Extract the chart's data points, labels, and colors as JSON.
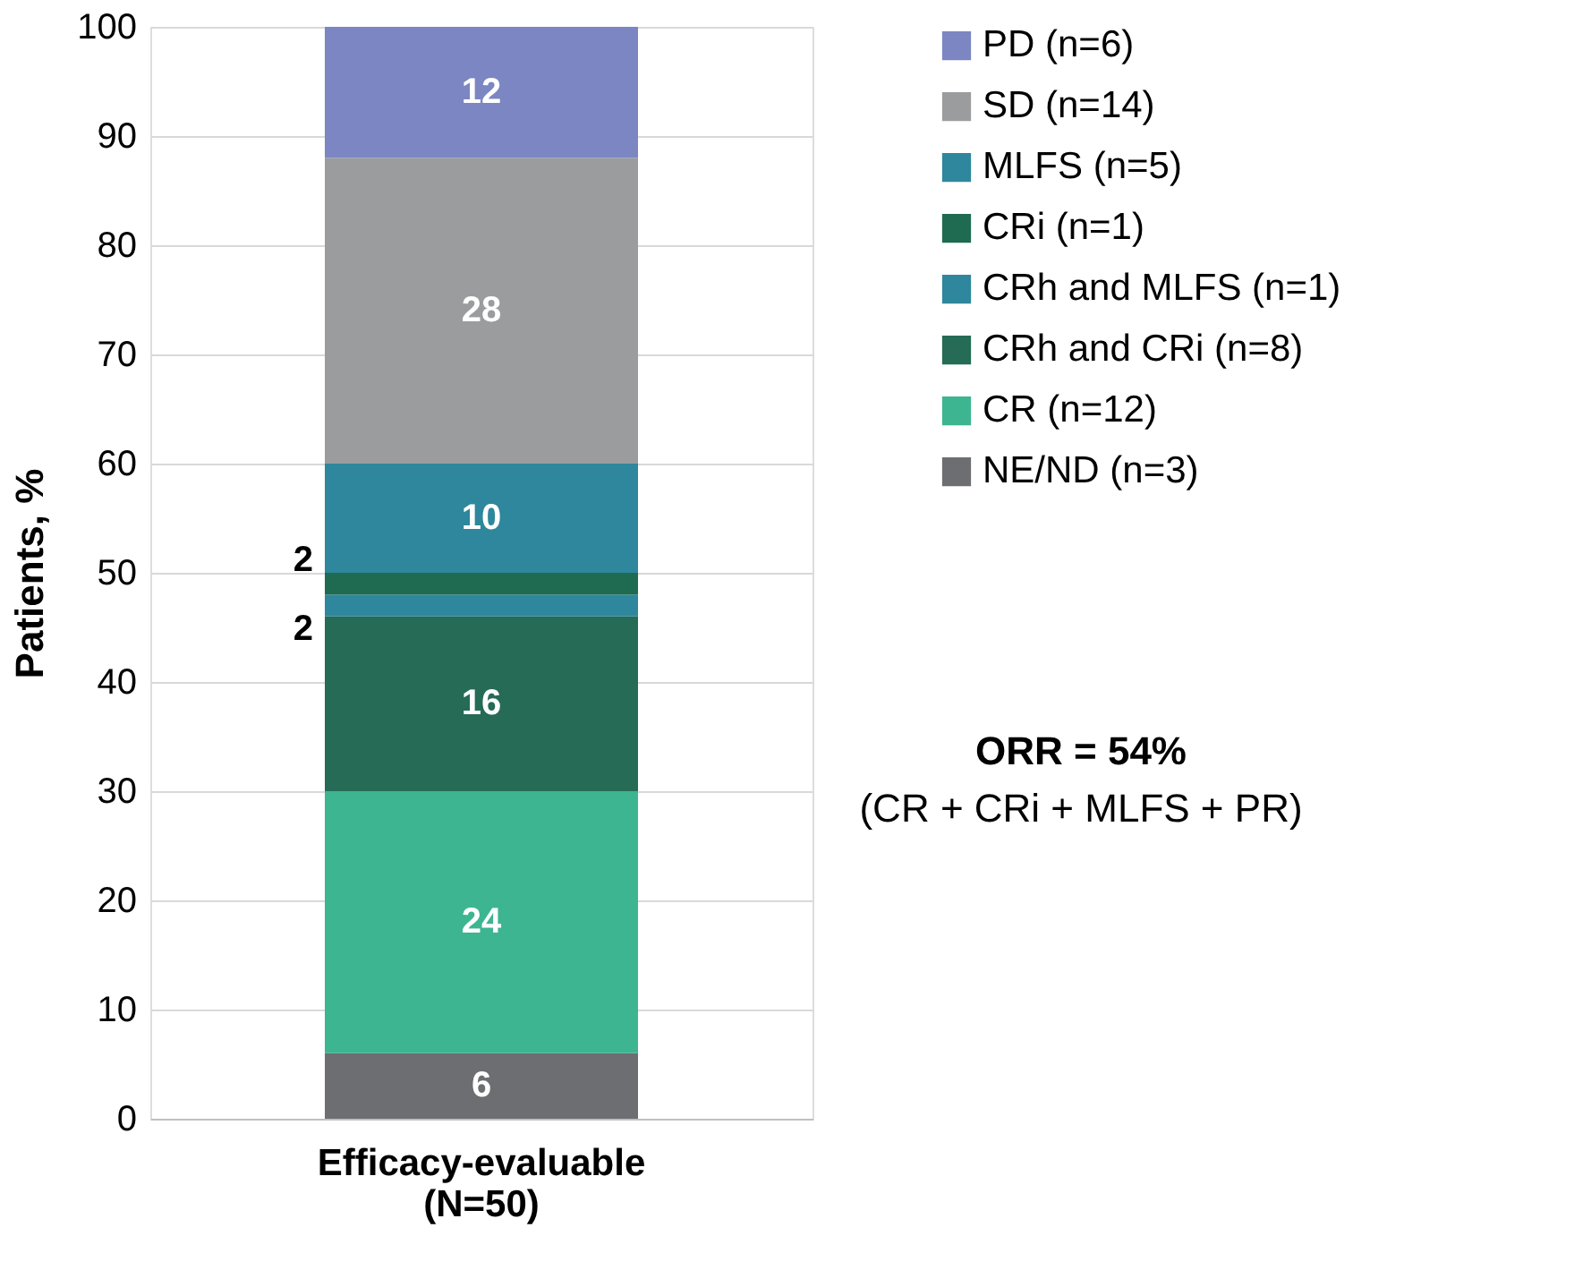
{
  "chart_data": {
    "type": "bar",
    "stacked": true,
    "ylabel": "Patients, %",
    "categories": [
      "Efficacy-evaluable (N=50)"
    ],
    "series": [
      {
        "name": "NE/ND (n=3)",
        "color": "#6d6e71",
        "values": [
          6
        ]
      },
      {
        "name": "CR (n=12)",
        "color": "#3db590",
        "values": [
          24
        ]
      },
      {
        "name": "CRh and CRi (n=8)",
        "color": "#256b55",
        "values": [
          16
        ]
      },
      {
        "name": "CRh and MLFS (n=1)",
        "color": "#2e879c",
        "values": [
          2
        ]
      },
      {
        "name": "CRi (n=1)",
        "color": "#1f6b52",
        "values": [
          2
        ]
      },
      {
        "name": "MLFS (n=5)",
        "color": "#2e879c",
        "values": [
          10
        ]
      },
      {
        "name": "SD (n=14)",
        "color": "#9b9c9e",
        "values": [
          28
        ]
      },
      {
        "name": "PD (n=6)",
        "color": "#7b86c2",
        "values": [
          12
        ]
      }
    ],
    "ylim": [
      0,
      100
    ],
    "yticks": [
      0,
      10,
      20,
      30,
      40,
      50,
      60,
      70,
      80,
      90,
      100
    ],
    "grid": "y",
    "legend": "right",
    "data_labels": true,
    "annotations": [
      "ORR = 54%",
      "(CR + CRi + MLFS + PR)"
    ]
  }
}
